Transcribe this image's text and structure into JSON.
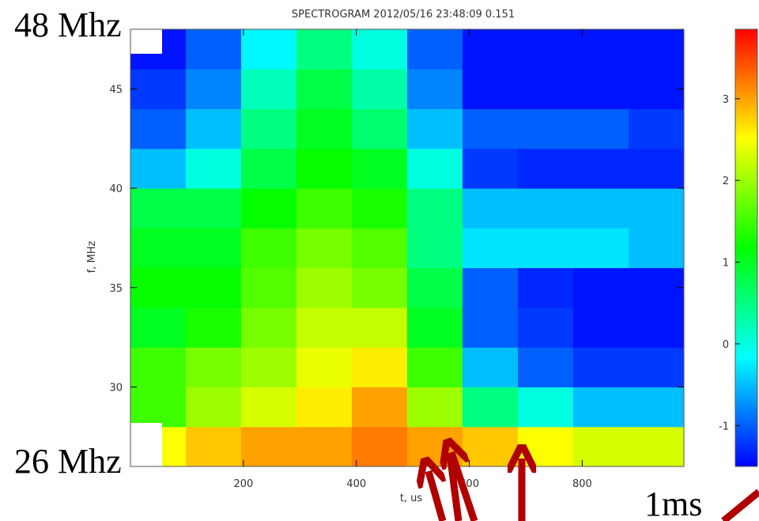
{
  "chart_data": {
    "type": "heatmap",
    "title": "SPECTROGRAM  2012/05/16 23:48:09 0.151",
    "x_label": "t, us",
    "y_label": "f, MHz",
    "annotations": [
      "48 Mhz",
      "26 Mhz",
      "1ms"
    ],
    "x": [
      49,
      147,
      245,
      343,
      441,
      539,
      637,
      735,
      833,
      931
    ],
    "y": [
      27,
      29,
      31,
      33,
      35,
      37,
      39,
      41,
      43,
      45,
      47
    ],
    "z": [
      [
        2.5,
        2.8,
        3,
        3,
        3.2,
        3,
        2.8,
        2.5,
        2.3,
        2.3
      ],
      [
        1.5,
        2,
        2.3,
        2.6,
        3,
        2,
        0.5,
        0,
        -0.5,
        -0.5
      ],
      [
        1.5,
        1.8,
        2,
        2.4,
        2.6,
        1.5,
        -0.5,
        -1,
        -1.2,
        -1.2
      ],
      [
        1,
        1.3,
        1.8,
        2.2,
        2.2,
        1,
        -1,
        -1.2,
        -1.4,
        -1.4
      ],
      [
        1.2,
        1.2,
        1.6,
        2,
        1.8,
        0.8,
        -1,
        -1.3,
        -1.4,
        -1.4
      ],
      [
        1,
        1,
        1.5,
        1.8,
        1.6,
        0.5,
        -0.3,
        -0.3,
        -0.3,
        -0.5
      ],
      [
        0.8,
        0.8,
        1.2,
        1.5,
        1.3,
        0.5,
        -0.5,
        -0.5,
        -0.5,
        -0.5
      ],
      [
        -0.5,
        0,
        0.8,
        1.2,
        1,
        0,
        -1.2,
        -1.3,
        -1.3,
        -1.3
      ],
      [
        -1,
        -0.5,
        0.5,
        1,
        0.6,
        -0.5,
        -1,
        -1,
        -1,
        -1.2
      ],
      [
        -1.2,
        -0.8,
        0.2,
        0.8,
        0.3,
        -0.8,
        -1.4,
        -1.4,
        -1.4,
        -1.4
      ],
      [
        -1.4,
        -1,
        -0.2,
        0.5,
        0,
        -1,
        -1.4,
        -1.4,
        -1.4,
        -1.4
      ]
    ],
    "xlim": [
      0,
      980
    ],
    "xticks": [
      200,
      400,
      600,
      800
    ],
    "ylim": [
      26,
      48
    ],
    "yticks": [
      30,
      35,
      40,
      45
    ],
    "zlim": [
      -1.5,
      3.85
    ],
    "zticks": [
      -1,
      0,
      1,
      2,
      3
    ],
    "colorscale": [
      "#0000ff",
      "#00ffff",
      "#00ff00",
      "#ffff00",
      "#ff0000"
    ]
  }
}
